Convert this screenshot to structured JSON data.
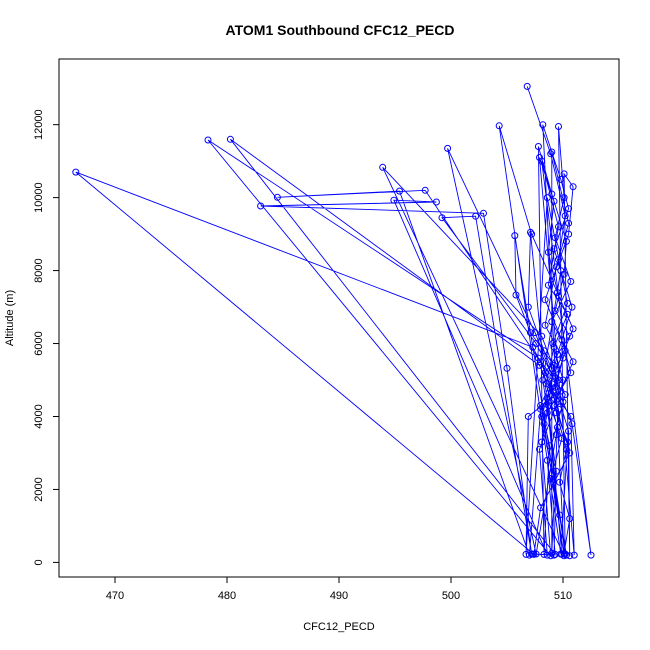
{
  "chart_data": {
    "type": "line",
    "title": "ATOM1 Southbound CFC12_PECD",
    "xlabel": "CFC12_PECD",
    "ylabel": "Altitude (m)",
    "xlim": [
      465,
      515
    ],
    "ylim": [
      -400,
      13800
    ],
    "x_ticks": [
      470,
      480,
      490,
      500,
      510
    ],
    "y_ticks": [
      0,
      2000,
      4000,
      6000,
      8000,
      10000,
      12000
    ],
    "grid": false,
    "markers": "open-circle",
    "series": [
      {
        "color": "#0000ff",
        "points": [
          [
            506.8,
            13050
          ],
          [
            508.9,
            11200
          ],
          [
            510.2,
            9500
          ],
          [
            509.6,
            8300
          ],
          [
            510.4,
            7100
          ],
          [
            509.1,
            6000
          ],
          [
            510.0,
            5000
          ],
          [
            509.4,
            4100
          ],
          [
            510.3,
            3100
          ],
          [
            509.7,
            2200
          ],
          [
            510.6,
            1200
          ],
          [
            510.1,
            250
          ],
          [
            508.2,
            12000
          ],
          [
            509.8,
            10500
          ],
          [
            510.5,
            9700
          ],
          [
            509.2,
            8600
          ],
          [
            510.8,
            7000
          ],
          [
            509.5,
            5700
          ],
          [
            508.6,
            4500
          ],
          [
            509.9,
            3400
          ],
          [
            508.9,
            2300
          ],
          [
            509.7,
            1300
          ],
          [
            510.2,
            230
          ],
          [
            509.6,
            11950
          ],
          [
            510.1,
            10000
          ],
          [
            509.3,
            8900
          ],
          [
            510.7,
            7700
          ],
          [
            509.0,
            6600
          ],
          [
            510.9,
            5500
          ],
          [
            509.2,
            4300
          ],
          [
            510.4,
            3300
          ],
          [
            509.8,
            230
          ],
          [
            504.3,
            11970
          ],
          [
            507.2,
            9000
          ],
          [
            509.5,
            7400
          ],
          [
            510.9,
            6400
          ],
          [
            509.4,
            5300
          ],
          [
            508.0,
            4300
          ],
          [
            508.8,
            3200
          ],
          [
            508.3,
            220
          ],
          [
            507.8,
            11400
          ],
          [
            509.0,
            10100
          ],
          [
            510.3,
            8800
          ],
          [
            510.1,
            7900
          ],
          [
            509.3,
            6900
          ],
          [
            510.6,
            6200
          ],
          [
            508.4,
            5200
          ],
          [
            509.6,
            4200
          ],
          [
            509.4,
            3500
          ],
          [
            507.6,
            230
          ],
          [
            499.7,
            11350
          ],
          [
            507.5,
            6300
          ],
          [
            510.0,
            4400
          ],
          [
            510.8,
            3800
          ],
          [
            512.5,
            200
          ],
          [
            508.1,
            11000
          ],
          [
            509.6,
            9200
          ],
          [
            508.7,
            7600
          ],
          [
            510.4,
            6800
          ],
          [
            509.2,
            5900
          ],
          [
            508.5,
            4900
          ],
          [
            509.5,
            3700
          ],
          [
            509.0,
            250
          ],
          [
            509.0,
            11250
          ],
          [
            510.5,
            9300
          ],
          [
            509.4,
            8100
          ],
          [
            508.4,
            6500
          ],
          [
            510.0,
            5600
          ],
          [
            509.1,
            4700
          ],
          [
            510.7,
            4000
          ],
          [
            511.0,
            200
          ],
          [
            507.9,
            11100
          ],
          [
            509.2,
            9900
          ],
          [
            508.7,
            8500
          ],
          [
            509.6,
            7300
          ],
          [
            510.2,
            5800
          ],
          [
            509.3,
            4800
          ],
          [
            510.5,
            3600
          ],
          [
            510.6,
            180
          ],
          [
            510.1,
            10650
          ],
          [
            510.9,
            10300
          ],
          [
            510.5,
            9000
          ],
          [
            508.4,
            7200
          ],
          [
            509.9,
            6100
          ],
          [
            510.7,
            5200
          ],
          [
            508.6,
            4100
          ],
          [
            508.1,
            3300
          ],
          [
            508.9,
            180
          ],
          [
            478.3,
            11580
          ],
          [
            507.8,
            5600
          ],
          [
            510.2,
            4600
          ],
          [
            508.6,
            2800
          ],
          [
            509.3,
            220
          ],
          [
            480.3,
            11600
          ],
          [
            507.9,
            5400
          ],
          [
            509.2,
            4500
          ],
          [
            510.6,
            3000
          ],
          [
            508.0,
            1500
          ],
          [
            507.4,
            220
          ],
          [
            466.5,
            10700
          ],
          [
            507.3,
            5900
          ],
          [
            509.0,
            4900
          ],
          [
            508.3,
            3800
          ],
          [
            510.1,
            180
          ],
          [
            493.9,
            10830
          ],
          [
            508.1,
            6200
          ],
          [
            509.6,
            5000
          ],
          [
            508.0,
            4200
          ],
          [
            507.0,
            200
          ],
          [
            495.4,
            10180
          ],
          [
            484.5,
            10010
          ],
          [
            497.7,
            10200
          ],
          [
            508.0,
            5500
          ],
          [
            509.5,
            4400
          ],
          [
            507.9,
            3100
          ],
          [
            508.6,
            200
          ],
          [
            494.9,
            9930
          ],
          [
            498.7,
            9880
          ],
          [
            483.0,
            9770
          ],
          [
            502.9,
            9570
          ],
          [
            505.0,
            5320
          ],
          [
            507.2,
            230
          ],
          [
            502.2,
            9490
          ],
          [
            499.2,
            9450
          ],
          [
            507.6,
            6000
          ],
          [
            509.1,
            5100
          ],
          [
            508.1,
            4000
          ],
          [
            510.3,
            200
          ],
          [
            505.7,
            8960
          ],
          [
            505.8,
            7330
          ],
          [
            507.1,
            6300
          ],
          [
            509.2,
            5400
          ],
          [
            508.7,
            4300
          ],
          [
            509.9,
            220
          ],
          [
            507.1,
            9050
          ],
          [
            506.9,
            7000
          ],
          [
            508.3,
            5800
          ],
          [
            509.8,
            4700
          ],
          [
            506.9,
            4000
          ],
          [
            506.7,
            220
          ],
          [
            508.6,
            10000
          ],
          [
            509.8,
            8000
          ],
          [
            508.2,
            5000
          ],
          [
            509.4,
            2500
          ],
          [
            509.2,
            200
          ],
          [
            507.3,
            230
          ]
        ]
      }
    ]
  }
}
